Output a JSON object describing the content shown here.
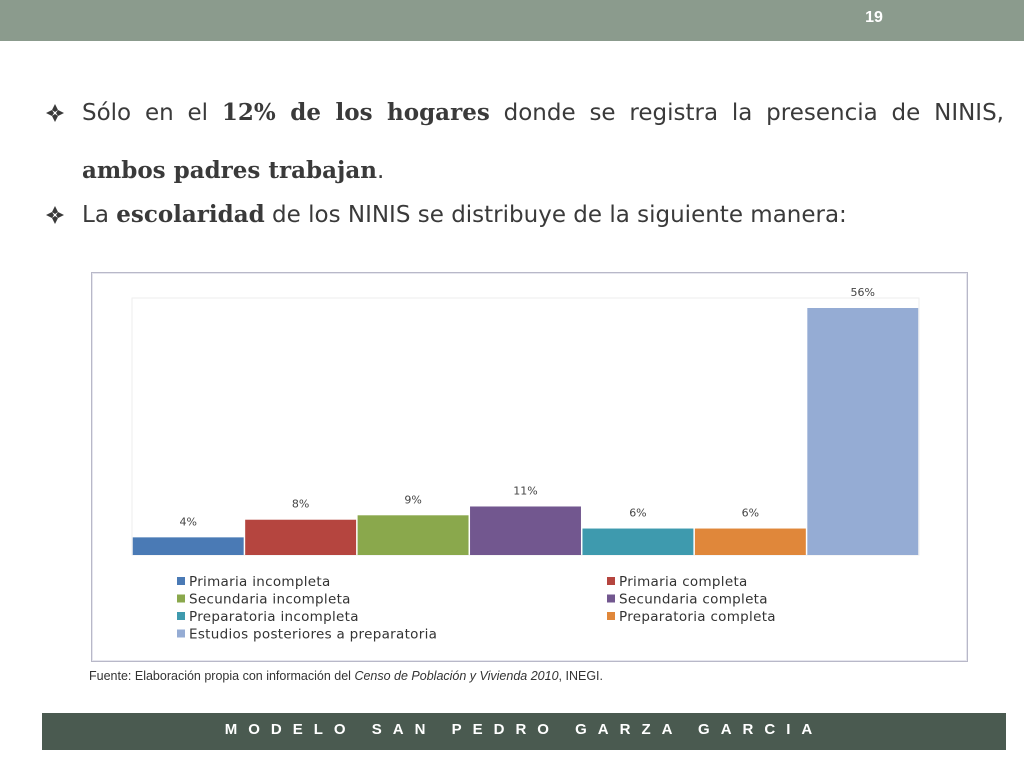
{
  "slide": {
    "number": "19",
    "footer": "MODELO SAN PEDRO GARZA GARCIA",
    "accent_color": "#8b9b8d",
    "footer_color": "#4a5a50"
  },
  "bullets": [
    {
      "icon": "diamond-bullet-icon",
      "text_a": "Sólo en el ",
      "bold_a": "12% de los hogares",
      "text_b": " donde se registra la presencia de NINIS, ",
      "bold_b": "ambos padres trabajan",
      "text_c": "."
    },
    {
      "icon": "diamond-bullet-icon",
      "text_a": "La ",
      "bold_a": "escolaridad",
      "text_b": " de los NINIS se distribuye de la siguiente manera:"
    }
  ],
  "source": {
    "prefix": "Fuente: Elaboración propia con información del ",
    "italic": "Censo de Población y Vivienda  2010",
    "suffix": ", INEGI."
  },
  "chart_data": {
    "type": "bar",
    "categories": [
      "Primaria incompleta",
      "Primaria completa",
      "Secundaria incompleta",
      "Secundaria completa",
      "Preparatoria incompleta",
      "Preparatoria completa",
      "Estudios posteriores a preparatoria"
    ],
    "values": [
      4,
      8,
      9,
      11,
      6,
      6,
      56
    ],
    "value_labels": [
      "4%",
      "8%",
      "9%",
      "11%",
      "6%",
      "6%",
      "56%"
    ],
    "colors": [
      "#4a7ab5",
      "#b5453f",
      "#8aa84c",
      "#72578f",
      "#3e9aae",
      "#e0873a",
      "#95acd4"
    ],
    "unit": "%",
    "ylim": [
      0,
      56
    ],
    "grid": false,
    "legend": "bottom",
    "title": "",
    "xlabel": "",
    "ylabel": ""
  }
}
